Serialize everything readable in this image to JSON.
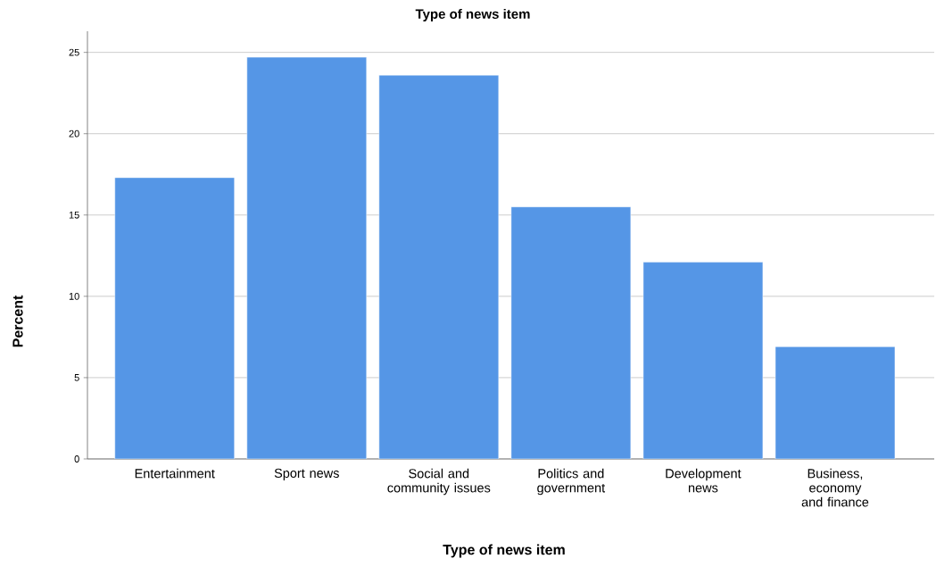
{
  "chart_data": {
    "type": "bar",
    "title": "Type of news item",
    "xlabel": "Type of news item",
    "ylabel": "Percent",
    "categories": [
      "Entertainment",
      "Sport news",
      "Social and community issues",
      "Politics and government",
      "Development news",
      "Business, economy and finance"
    ],
    "values": [
      17.3,
      24.7,
      23.6,
      15.5,
      12.1,
      6.9
    ],
    "color": "#5596e6",
    "ylim": [
      0,
      26.3
    ],
    "yticks": [
      0,
      5,
      10,
      15,
      20,
      25
    ],
    "grid": "y"
  }
}
